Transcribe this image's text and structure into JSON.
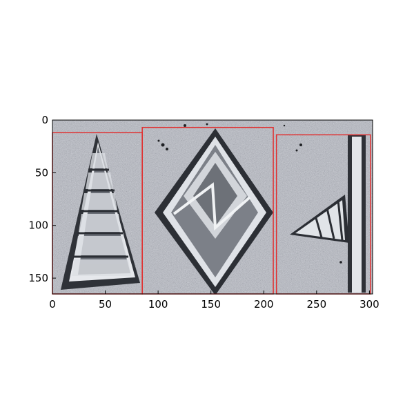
{
  "figure": {
    "image_subject": "stone-relief-glyph-carving",
    "x_axis": {
      "range": [
        0,
        303
      ],
      "ticks": [
        0,
        50,
        100,
        150,
        200,
        250,
        300
      ]
    },
    "y_axis": {
      "range": [
        165,
        0
      ],
      "inverted": true,
      "ticks": [
        0,
        50,
        100,
        150
      ]
    },
    "bounding_boxes": [
      {
        "id": "glyph-1",
        "x_min": 0,
        "x_max": 85,
        "y_min": 12,
        "y_max": 165,
        "color": "#e03030"
      },
      {
        "id": "glyph-2",
        "x_min": 85,
        "x_max": 209,
        "y_min": 7,
        "y_max": 165,
        "color": "#e03030"
      },
      {
        "id": "glyph-3",
        "x_min": 212,
        "x_max": 301,
        "y_min": 14,
        "y_max": 165,
        "color": "#e03030"
      }
    ]
  }
}
